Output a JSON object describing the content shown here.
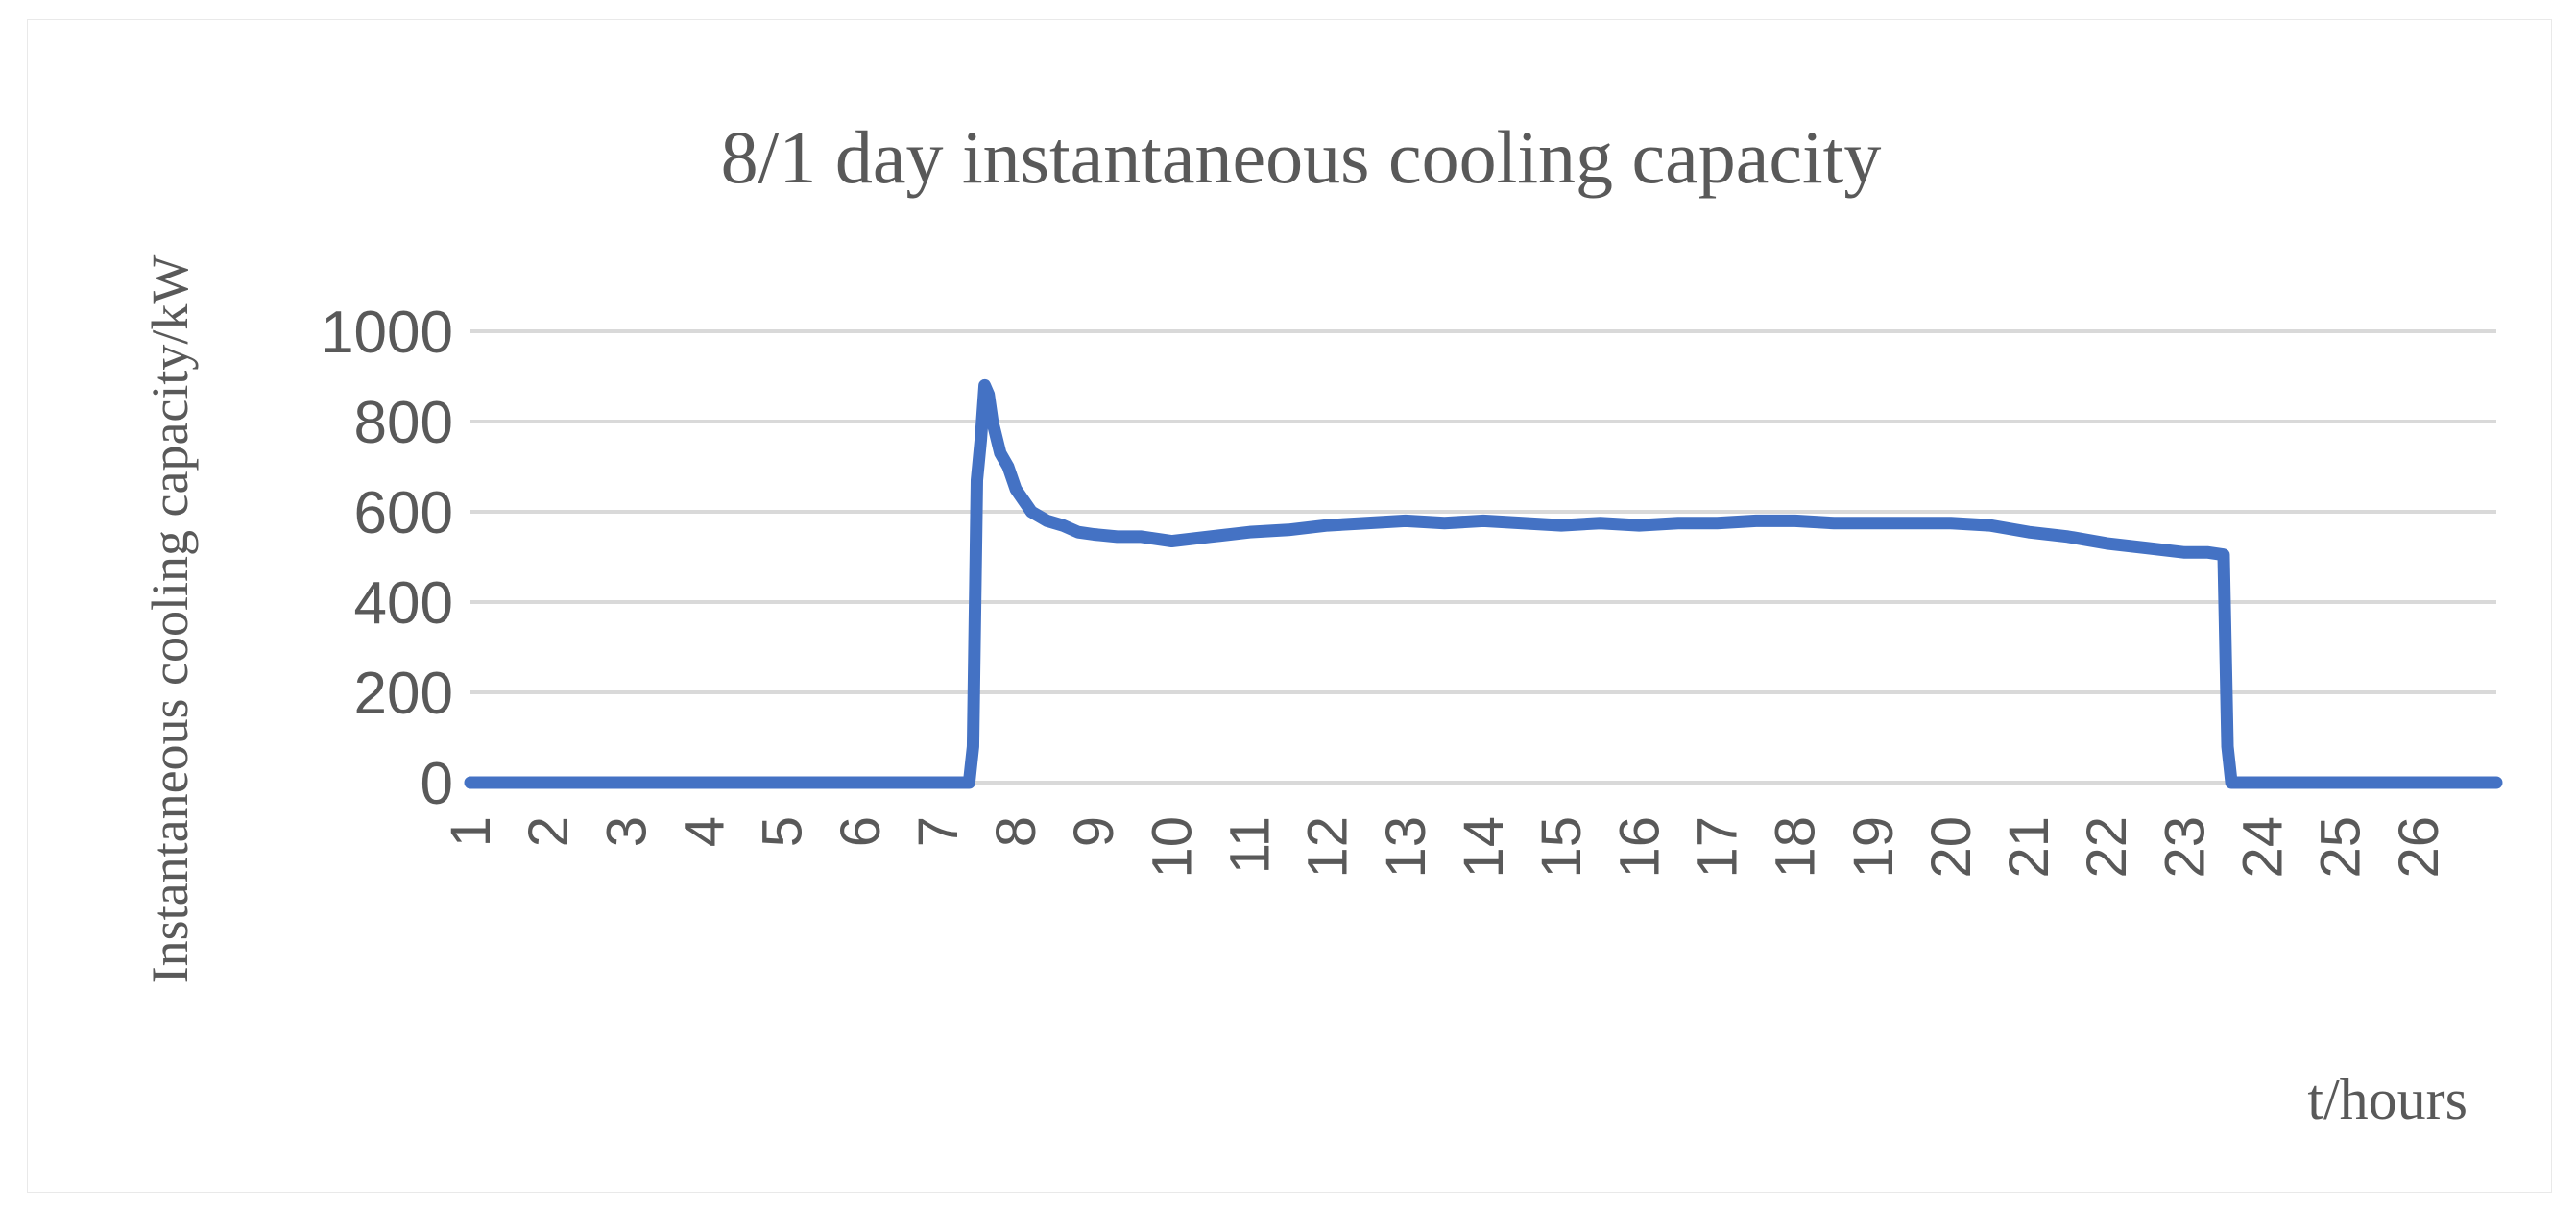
{
  "chart_data": {
    "type": "line",
    "title": "8/1 day instantaneous cooling capacity",
    "xlabel": "t/hours",
    "ylabel": "Instantaneous cooling capacity/kW",
    "ylim": [
      0,
      1000
    ],
    "yticks": [
      "0",
      "200",
      "400",
      "600",
      "800",
      "1000"
    ],
    "xticks": [
      "1",
      "2",
      "3",
      "4",
      "5",
      "6",
      "7",
      "8",
      "9",
      "10",
      "11",
      "12",
      "13",
      "14",
      "15",
      "16",
      "17",
      "18",
      "19",
      "20",
      "21",
      "22",
      "23",
      "24",
      "25",
      "26"
    ],
    "xlim": [
      1,
      27
    ],
    "grid": true,
    "legend": "none",
    "series_color": "#4472c4",
    "series": [
      {
        "x": [
          1,
          7.4,
          7.45,
          7.5,
          7.55,
          7.6,
          7.65,
          7.7,
          7.8,
          7.9,
          8.0,
          8.2,
          8.4,
          8.6,
          8.8,
          9.0,
          9.3,
          9.6,
          10.0,
          10.5,
          11.0,
          11.5,
          12.0,
          12.5,
          13.0,
          13.5,
          14.0,
          14.5,
          15.0,
          15.5,
          16.0,
          16.5,
          17.0,
          17.5,
          18.0,
          18.5,
          19.0,
          19.5,
          20.0,
          20.5,
          21.0,
          21.5,
          22.0,
          22.5,
          23.0,
          23.3,
          23.5,
          23.55,
          23.6,
          27
        ],
        "values": [
          0,
          0,
          80,
          670,
          760,
          880,
          860,
          800,
          730,
          700,
          650,
          600,
          580,
          570,
          555,
          550,
          545,
          545,
          535,
          545,
          555,
          560,
          570,
          575,
          580,
          575,
          580,
          575,
          570,
          575,
          570,
          575,
          575,
          580,
          580,
          575,
          575,
          575,
          575,
          570,
          555,
          545,
          530,
          520,
          510,
          510,
          505,
          80,
          0,
          0
        ]
      }
    ]
  }
}
